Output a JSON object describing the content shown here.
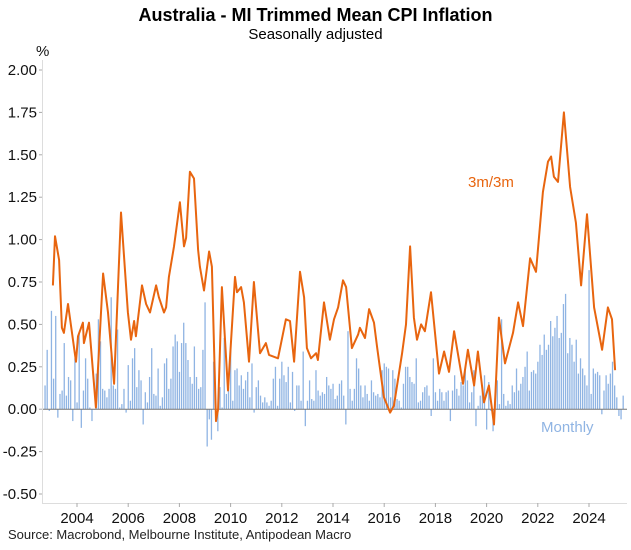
{
  "chart_data": {
    "type": "bar+line",
    "title": "Australia - MI Trimmed Mean CPI Inflation",
    "subtitle": "Seasonally adjusted",
    "ylabel": "%",
    "ylim": [
      -0.5,
      2.0
    ],
    "yticks": [
      "2.00",
      "1.75",
      "1.50",
      "1.25",
      "1.00",
      "0.75",
      "0.50",
      "0.25",
      "0.00",
      "-0.25",
      "-0.50"
    ],
    "ytick_values": [
      2.0,
      1.75,
      1.5,
      1.25,
      1.0,
      0.75,
      0.5,
      0.25,
      0.0,
      -0.25,
      -0.5
    ],
    "xticks": [
      "2004",
      "2006",
      "2008",
      "2010",
      "2012",
      "2014",
      "2016",
      "2018",
      "2020",
      "2022",
      "2024"
    ],
    "xlim": [
      2002.7,
      2025.4
    ],
    "grid": false,
    "source": "Source: Macrobond, Melbourne Institute, Antipodean Macro",
    "series": [
      {
        "name": "Monthly",
        "type": "bar",
        "color": "#8fb4e3",
        "start": 2002.75,
        "values": [
          0.14,
          0.35,
          -0.01,
          0.58,
          0.18,
          0.55,
          -0.05,
          0.09,
          0.11,
          0.39,
          0.08,
          0.19,
          0.17,
          -0.07,
          0.3,
          0.04,
          0.45,
          -0.11,
          0.11,
          0.3,
          0.18,
          0.01,
          -0.07,
          0.0,
          0.21,
          0.53,
          0.4,
          0.12,
          0.11,
          0.07,
          0.12,
          0.66,
          0.14,
          0.12,
          0.47,
          0.01,
          0.03,
          0.12,
          -0.02,
          0.26,
          0.05,
          0.3,
          0.36,
          0.13,
          0.23,
          0.17,
          -0.09,
          0.1,
          0.04,
          0.19,
          0.36,
          0.09,
          0.08,
          0.24,
          0.02,
          0.07,
          0.27,
          0.3,
          0.12,
          0.18,
          0.37,
          0.44,
          0.4,
          0.22,
          0.39,
          0.51,
          0.39,
          0.29,
          0.19,
          0.15,
          0.37,
          0.19,
          0.12,
          0.13,
          0.35,
          0.63,
          -0.22,
          -0.06,
          -0.18,
          0.28,
          -0.02,
          -0.13,
          0.13,
          0.01,
          0.42,
          0.09,
          0.13,
          0.35,
          0.05,
          0.23,
          0.24,
          0.14,
          0.2,
          0.12,
          0.17,
          0.22,
          0.07,
          0.27,
          -0.02,
          0.13,
          0.17,
          0.08,
          0.04,
          0.07,
          0.04,
          0.02,
          0.05,
          0.18,
          0.25,
          0.02,
          0.18,
          0.28,
          0.2,
          0.16,
          0.25,
          0.04,
          0.22,
          -0.01,
          0.14,
          0.14,
          0.05,
          0.34,
          -0.1,
          0.05,
          0.17,
          0.06,
          0.05,
          0.23,
          0.11,
          0.08,
          0.1,
          0.09,
          0.19,
          0.14,
          0.12,
          0.15,
          0.06,
          0.08,
          0.15,
          0.17,
          0.08,
          -0.09,
          0.46,
          0.12,
          0.05,
          0.12,
          0.3,
          0.24,
          0.14,
          0.07,
          0.14,
          0.09,
          0.05,
          0.17,
          0.1,
          0.08,
          0.09,
          0.07,
          0.23,
          0.27,
          0.25,
          0.24,
          0.07,
          0.23,
          0.18,
          0.06,
          0.05,
          0.01,
          0.15,
          0.25,
          0.25,
          0.19,
          0.16,
          0.15,
          0.3,
          0.04,
          0.05,
          0.1,
          0.13,
          0.14,
          0.08,
          -0.04,
          0.3,
          0.1,
          0.05,
          0.12,
          0.1,
          0.05,
          0.1,
          0.11,
          -0.07,
          0.11,
          0.2,
          0.12,
          0.08,
          0.16,
          0.14,
          0.23,
          0.17,
          0.04,
          0.1,
          0.23,
          -0.1,
          0.02,
          0.08,
          0.14,
          0.2,
          -0.12,
          0.16,
          -0.01,
          -0.13,
          0.03,
          0.17,
          0.03,
          0.53,
          0.09,
          0.02,
          0.05,
          0.03,
          0.14,
          0.1,
          0.24,
          0.11,
          0.15,
          0.19,
          0.25,
          0.34,
          0.11,
          0.22,
          0.23,
          0.21,
          0.28,
          0.38,
          0.32,
          0.44,
          0.35,
          0.38,
          0.52,
          0.43,
          0.48,
          0.55,
          0.42,
          0.45,
          0.62,
          0.68,
          0.33,
          0.42,
          0.38,
          0.28,
          0.41,
          0.21,
          0.3,
          0.24,
          0.2,
          0.14,
          0.82,
          0.09,
          0.24,
          0.21,
          0.22,
          0.2,
          -0.03,
          0.11,
          0.2,
          0.15,
          0.21,
          0.28,
          0.14,
          0.07,
          -0.04,
          -0.06,
          0.08
        ]
      },
      {
        "name": "3m/3m",
        "type": "line",
        "color": "#e8650f",
        "points": [
          [
            2003.06,
            0.73
          ],
          [
            2003.14,
            1.02
          ],
          [
            2003.3,
            0.88
          ],
          [
            2003.41,
            0.48
          ],
          [
            2003.49,
            0.45
          ],
          [
            2003.65,
            0.62
          ],
          [
            2003.96,
            0.28
          ],
          [
            2004.04,
            0.43
          ],
          [
            2004.23,
            0.51
          ],
          [
            2004.27,
            0.39
          ],
          [
            2004.47,
            0.51
          ],
          [
            2004.74,
            0.01
          ],
          [
            2005.02,
            0.8
          ],
          [
            2005.21,
            0.57
          ],
          [
            2005.45,
            0.15
          ],
          [
            2005.72,
            1.16
          ],
          [
            2005.99,
            0.57
          ],
          [
            2006.11,
            0.41
          ],
          [
            2006.23,
            0.52
          ],
          [
            2006.3,
            0.43
          ],
          [
            2006.54,
            0.73
          ],
          [
            2006.7,
            0.62
          ],
          [
            2006.85,
            0.57
          ],
          [
            2007.09,
            0.73
          ],
          [
            2007.2,
            0.66
          ],
          [
            2007.4,
            0.57
          ],
          [
            2007.48,
            0.6
          ],
          [
            2007.59,
            0.78
          ],
          [
            2007.79,
            0.96
          ],
          [
            2007.95,
            1.14
          ],
          [
            2008.02,
            1.22
          ],
          [
            2008.18,
            0.96
          ],
          [
            2008.26,
            1.01
          ],
          [
            2008.41,
            1.4
          ],
          [
            2008.57,
            1.36
          ],
          [
            2008.73,
            0.94
          ],
          [
            2008.8,
            0.84
          ],
          [
            2008.96,
            0.7
          ],
          [
            2009.16,
            0.93
          ],
          [
            2009.27,
            0.84
          ],
          [
            2009.43,
            -0.07
          ],
          [
            2009.51,
            0.0
          ],
          [
            2009.66,
            0.72
          ],
          [
            2009.9,
            0.11
          ],
          [
            2010.17,
            0.78
          ],
          [
            2010.25,
            0.69
          ],
          [
            2010.41,
            0.72
          ],
          [
            2010.52,
            0.63
          ],
          [
            2010.72,
            0.28
          ],
          [
            2010.91,
            0.75
          ],
          [
            2011.15,
            0.33
          ],
          [
            2011.38,
            0.39
          ],
          [
            2011.5,
            0.32
          ],
          [
            2011.85,
            0.3
          ],
          [
            2012.16,
            0.53
          ],
          [
            2012.32,
            0.52
          ],
          [
            2012.48,
            0.28
          ],
          [
            2012.71,
            0.81
          ],
          [
            2012.87,
            0.66
          ],
          [
            2012.98,
            0.36
          ],
          [
            2013.14,
            0.3
          ],
          [
            2013.34,
            0.33
          ],
          [
            2013.41,
            0.29
          ],
          [
            2013.65,
            0.63
          ],
          [
            2013.88,
            0.41
          ],
          [
            2014.04,
            0.53
          ],
          [
            2014.2,
            0.6
          ],
          [
            2014.39,
            0.76
          ],
          [
            2014.51,
            0.72
          ],
          [
            2014.74,
            0.36
          ],
          [
            2014.98,
            0.44
          ],
          [
            2015.05,
            0.48
          ],
          [
            2015.25,
            0.42
          ],
          [
            2015.41,
            0.59
          ],
          [
            2015.6,
            0.51
          ],
          [
            2015.72,
            0.37
          ],
          [
            2015.99,
            0.07
          ],
          [
            2016.23,
            -0.02
          ],
          [
            2016.38,
            0.02
          ],
          [
            2016.7,
            0.33
          ],
          [
            2016.85,
            0.5
          ],
          [
            2017.01,
            0.96
          ],
          [
            2017.16,
            0.54
          ],
          [
            2017.28,
            0.41
          ],
          [
            2017.44,
            0.5
          ],
          [
            2017.59,
            0.46
          ],
          [
            2017.83,
            0.69
          ],
          [
            2018.14,
            0.21
          ],
          [
            2018.34,
            0.34
          ],
          [
            2018.53,
            0.22
          ],
          [
            2018.73,
            0.46
          ],
          [
            2019.08,
            0.15
          ],
          [
            2019.27,
            0.35
          ],
          [
            2019.51,
            0.14
          ],
          [
            2019.66,
            0.34
          ],
          [
            2019.9,
            0.04
          ],
          [
            2020.09,
            0.14
          ],
          [
            2020.29,
            -0.09
          ],
          [
            2020.48,
            0.54
          ],
          [
            2020.72,
            0.27
          ],
          [
            2021.03,
            0.45
          ],
          [
            2021.23,
            0.63
          ],
          [
            2021.42,
            0.49
          ],
          [
            2021.7,
            0.89
          ],
          [
            2021.93,
            0.81
          ],
          [
            2022.2,
            1.28
          ],
          [
            2022.4,
            1.46
          ],
          [
            2022.52,
            1.49
          ],
          [
            2022.63,
            1.37
          ],
          [
            2022.79,
            1.34
          ],
          [
            2023.02,
            1.75
          ],
          [
            2023.26,
            1.31
          ],
          [
            2023.49,
            1.1
          ],
          [
            2023.69,
            0.73
          ],
          [
            2023.92,
            1.15
          ],
          [
            2024.2,
            0.6
          ],
          [
            2024.51,
            0.35
          ],
          [
            2024.74,
            0.6
          ],
          [
            2024.9,
            0.53
          ],
          [
            2025.02,
            0.23
          ]
        ]
      }
    ]
  }
}
